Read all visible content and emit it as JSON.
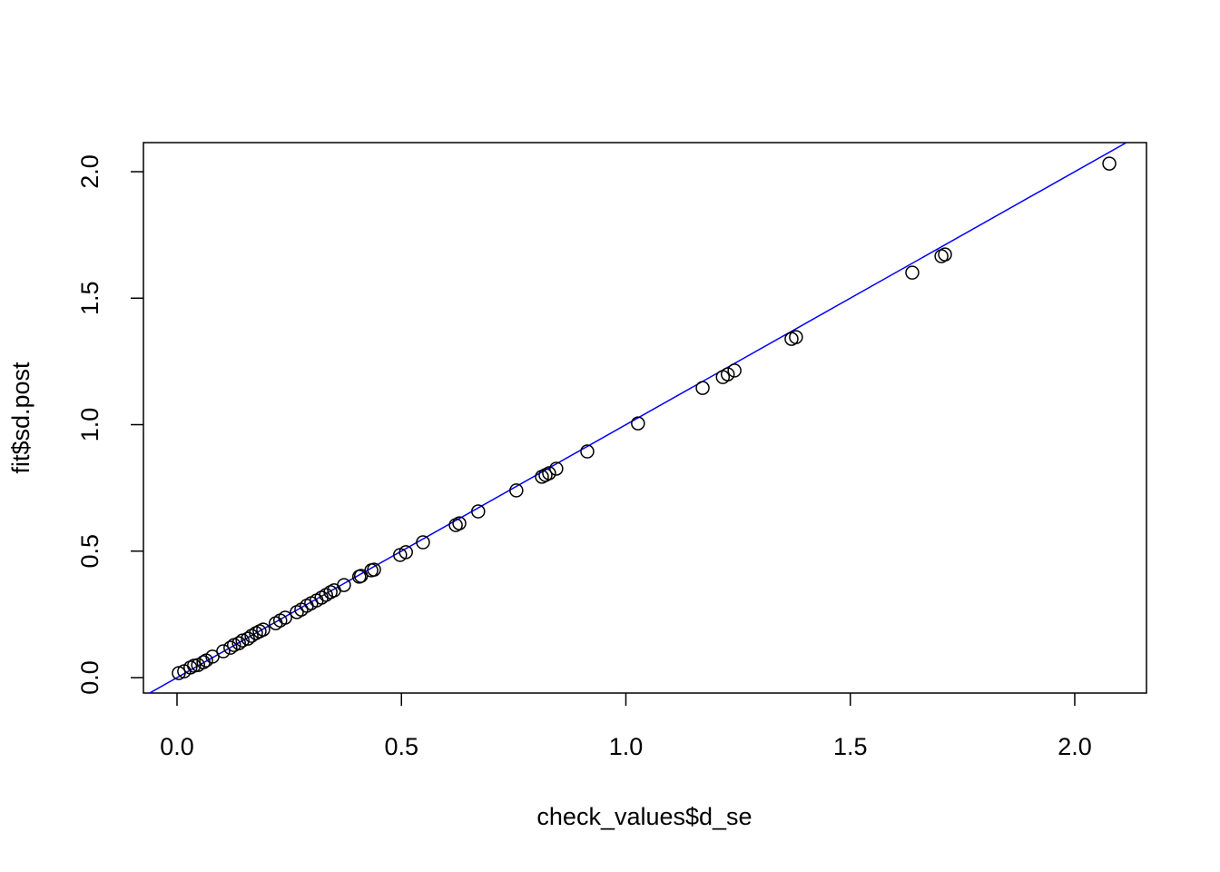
{
  "chart_data": {
    "type": "scatter",
    "x_label": "check_values$d_se",
    "y_label": "fit$sd.post",
    "x": [
      0.004,
      0.016,
      0.03,
      0.038,
      0.047,
      0.059,
      0.065,
      0.079,
      0.103,
      0.119,
      0.127,
      0.138,
      0.146,
      0.158,
      0.166,
      0.176,
      0.184,
      0.192,
      0.22,
      0.23,
      0.241,
      0.267,
      0.277,
      0.289,
      0.299,
      0.311,
      0.322,
      0.332,
      0.342,
      0.35,
      0.372,
      0.406,
      0.41,
      0.433,
      0.439,
      0.497,
      0.51,
      0.548,
      0.621,
      0.629,
      0.671,
      0.756,
      0.813,
      0.821,
      0.829,
      0.845,
      0.914,
      1.027,
      1.171,
      1.216,
      1.227,
      1.242,
      1.369,
      1.379,
      1.638,
      1.703,
      1.711,
      2.077
    ],
    "values": [
      0.018,
      0.025,
      0.04,
      0.047,
      0.05,
      0.061,
      0.068,
      0.083,
      0.104,
      0.118,
      0.129,
      0.136,
      0.147,
      0.154,
      0.165,
      0.176,
      0.183,
      0.19,
      0.215,
      0.226,
      0.237,
      0.259,
      0.269,
      0.284,
      0.294,
      0.305,
      0.316,
      0.327,
      0.338,
      0.345,
      0.366,
      0.399,
      0.402,
      0.424,
      0.427,
      0.485,
      0.496,
      0.535,
      0.603,
      0.61,
      0.657,
      0.74,
      0.794,
      0.801,
      0.808,
      0.826,
      0.894,
      1.005,
      1.145,
      1.188,
      1.199,
      1.214,
      1.339,
      1.346,
      1.601,
      1.666,
      1.673,
      2.032
    ],
    "color": "#000000",
    "reference_line": {
      "slope": 1,
      "intercept": 0,
      "color": "#0000ff"
    },
    "xlim": [
      -0.0748,
      2.1598
    ],
    "ylim": [
      -0.061,
      2.115
    ],
    "xticks": [
      {
        "value": 0,
        "label": "0.0"
      },
      {
        "value": 0.5,
        "label": "0.5"
      },
      {
        "value": 1,
        "label": "1.0"
      },
      {
        "value": 1.5,
        "label": "1.5"
      },
      {
        "value": 2,
        "label": "2.0"
      }
    ],
    "yticks": [
      {
        "value": 0,
        "label": "0.0"
      },
      {
        "value": 0.5,
        "label": "0.5"
      },
      {
        "value": 1,
        "label": "1.0"
      },
      {
        "value": 1.5,
        "label": "1.5"
      },
      {
        "value": 2,
        "label": "2.0"
      }
    ]
  }
}
